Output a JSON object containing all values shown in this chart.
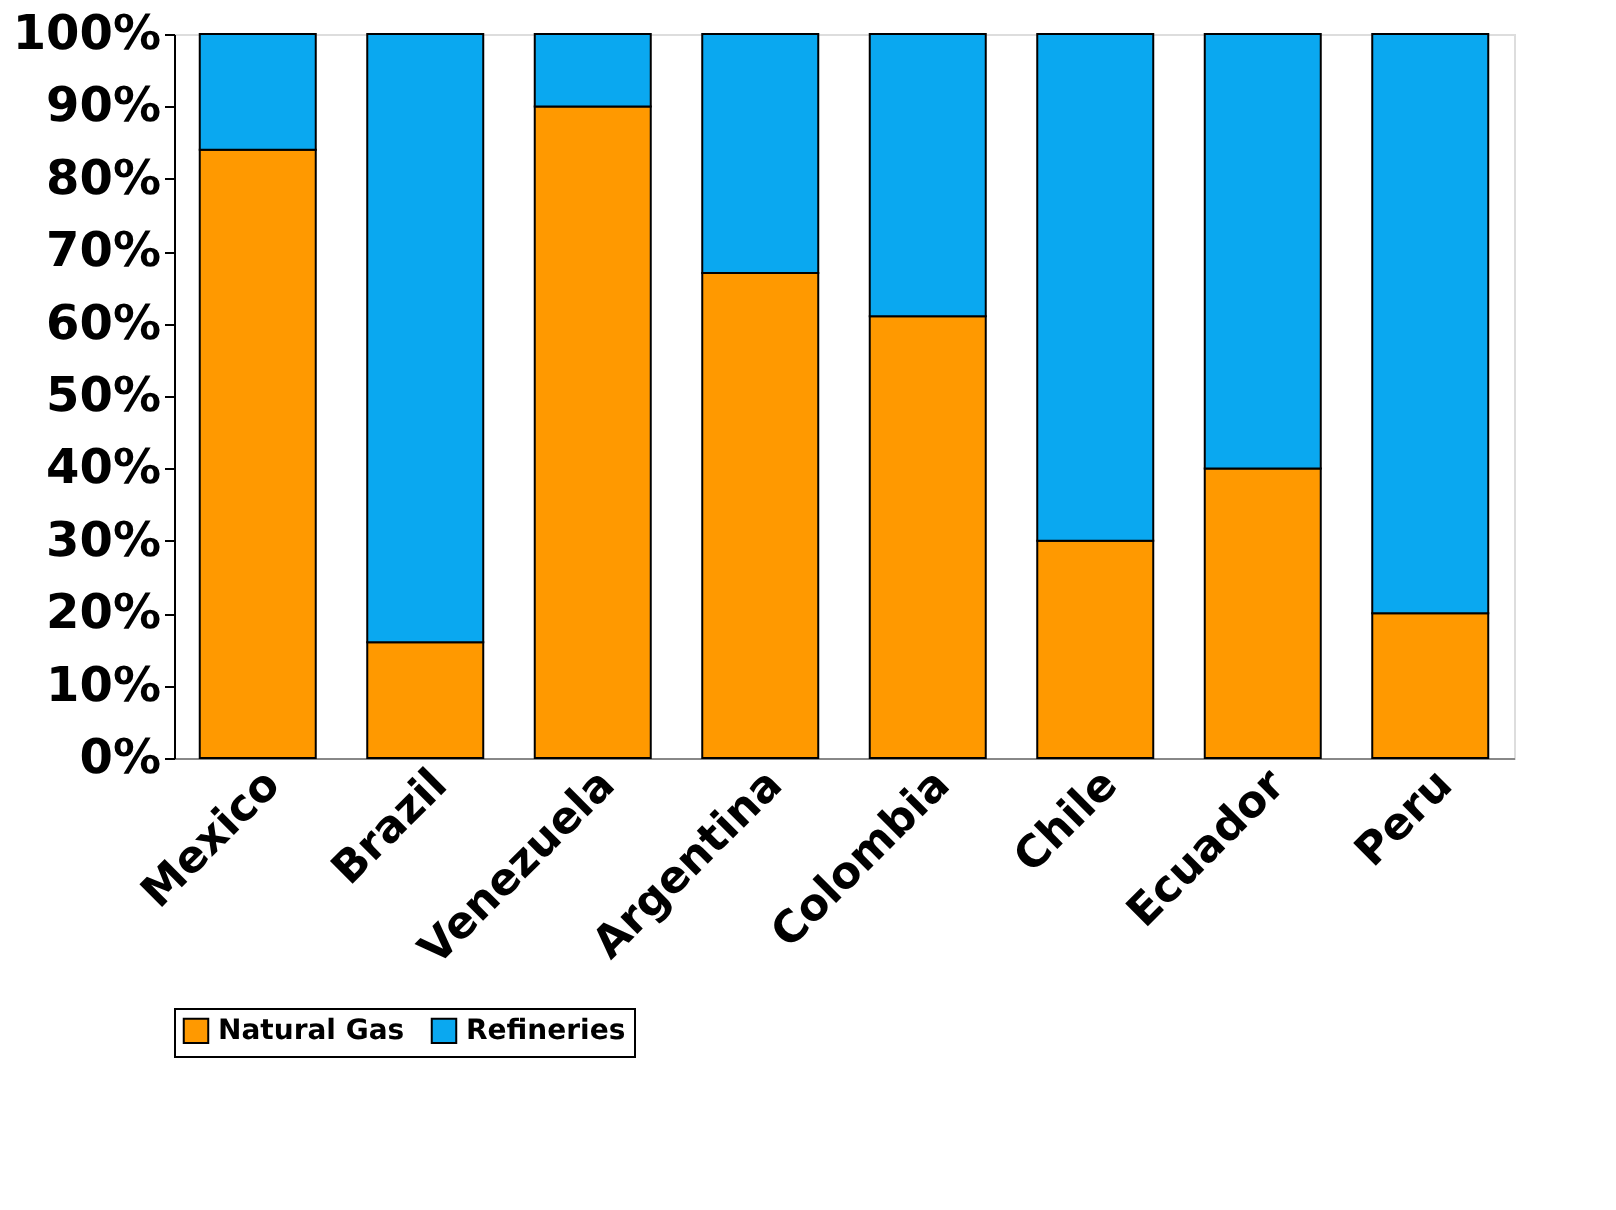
{
  "chart_data": {
    "type": "bar",
    "stacked": true,
    "categories": [
      "Mexico",
      "Brazil",
      "Venezuela",
      "Argentina",
      "Colombia",
      "Chile",
      "Ecuador",
      "Peru"
    ],
    "series": [
      {
        "name": "Natural Gas",
        "color": "#ff9900",
        "values": [
          84,
          16,
          90,
          67,
          61,
          30,
          40,
          20
        ]
      },
      {
        "name": "Refineries",
        "color": "#0aa8f0",
        "values": [
          16,
          84,
          10,
          33,
          39,
          70,
          60,
          80
        ]
      }
    ],
    "ylim": [
      0,
      100
    ],
    "yticks": [
      {
        "value": 0,
        "label": "0%"
      },
      {
        "value": 10,
        "label": "10%"
      },
      {
        "value": 20,
        "label": "20%"
      },
      {
        "value": 30,
        "label": "30%"
      },
      {
        "value": 40,
        "label": "40%"
      },
      {
        "value": 50,
        "label": "50%"
      },
      {
        "value": 60,
        "label": "60%"
      },
      {
        "value": 70,
        "label": "70%"
      },
      {
        "value": 80,
        "label": "80%"
      },
      {
        "value": 90,
        "label": "90%"
      },
      {
        "value": 100,
        "label": "100%"
      }
    ],
    "grid": false,
    "legend": "bottom"
  }
}
